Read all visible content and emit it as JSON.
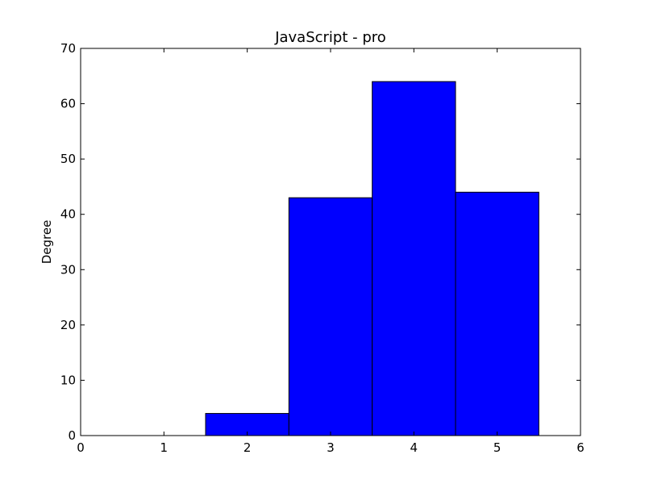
{
  "chart_data": {
    "type": "bar",
    "title": "JavaScript - pro",
    "xlabel": "",
    "ylabel": "Degree",
    "categories": [
      1,
      2,
      3,
      4,
      5
    ],
    "values": [
      0,
      4,
      43,
      64,
      44
    ],
    "bar_width": 1,
    "xlim": [
      0,
      6
    ],
    "ylim": [
      0,
      70
    ],
    "xticks": [
      "0",
      "1",
      "2",
      "3",
      "4",
      "5",
      "6"
    ],
    "yticks": [
      "0",
      "10",
      "20",
      "30",
      "40",
      "50",
      "60",
      "70"
    ],
    "grid": false,
    "bar_color": "#0000ff",
    "edge_color": "#000000"
  }
}
